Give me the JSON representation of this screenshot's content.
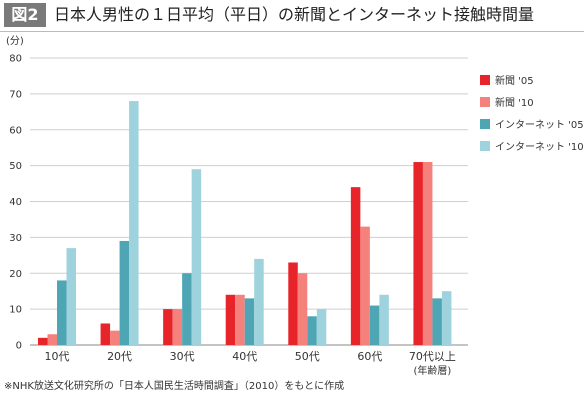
{
  "header": {
    "figure_label": "図2",
    "title": "日本人男性の１日平均（平日）の新聞とインターネット接触時間量"
  },
  "footnote": "※NHK放送文化研究所の「日本人国民生活時間調査」（2010）をもとに作成",
  "chart_data": {
    "type": "bar",
    "title": "日本人男性の１日平均（平日）の新聞とインターネット接触時間量",
    "ylabel": "(分)",
    "xlabel": "",
    "ylim": [
      0,
      80
    ],
    "yticks": [
      0,
      10,
      20,
      30,
      40,
      50,
      60,
      70,
      80
    ],
    "grid": true,
    "legend_position": "right",
    "categories": [
      "10代",
      "20代",
      "30代",
      "40代",
      "50代",
      "60代",
      "70代以上"
    ],
    "category_note": "(年齢層)",
    "series": [
      {
        "name": "新聞 '05",
        "color": "#e8242b",
        "values": [
          2,
          6,
          10,
          14,
          23,
          44,
          51
        ]
      },
      {
        "name": "新聞 '10",
        "color": "#f5817c",
        "values": [
          3,
          4,
          10,
          14,
          20,
          33,
          51
        ]
      },
      {
        "name": "インターネット '05",
        "color": "#4ea6b5",
        "values": [
          18,
          29,
          20,
          13,
          8,
          11,
          13
        ]
      },
      {
        "name": "インターネット '10",
        "color": "#9ed3dd",
        "values": [
          27,
          68,
          49,
          24,
          10,
          14,
          15
        ]
      }
    ]
  }
}
